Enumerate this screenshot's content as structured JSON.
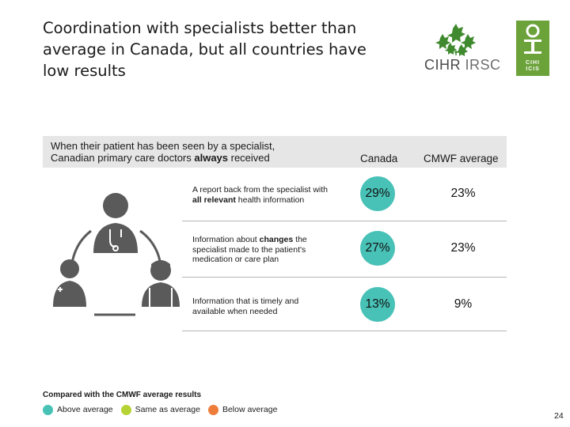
{
  "slide": {
    "title": "Coordination with specialists better than average in Canada, but all countries have low results",
    "page_number": "24"
  },
  "logos": {
    "cihr": {
      "name": "CIHR",
      "name_fr": "IRSC",
      "icon": "maple-leaf-cluster-icon"
    },
    "cihi": {
      "lines": [
        "CIHI",
        "ICIS"
      ],
      "icon": "cihi-i-logo-icon",
      "color": "#6ba23a"
    }
  },
  "table": {
    "intro_line1": "When their patient has been seen by a specialist,",
    "intro_line2_prefix": "Canadian primary care doctors ",
    "intro_line2_bold": "always",
    "intro_line2_suffix": " received",
    "columns": {
      "canada": "Canada",
      "cmwf": "CMWF average"
    },
    "rows": [
      {
        "label_prefix": "A report back from the specialist with ",
        "label_bold": "all relevant",
        "label_suffix": " health information",
        "canada": "29%",
        "cmwf": "23%",
        "canada_status": "above"
      },
      {
        "label_prefix": "Information about ",
        "label_bold": "changes",
        "label_suffix": " the specialist made to the patient's medication or care plan",
        "canada": "27%",
        "cmwf": "23%",
        "canada_status": "above"
      },
      {
        "label_prefix": "Information that is timely and available when needed",
        "label_bold": "",
        "label_suffix": "",
        "canada": "13%",
        "cmwf": "9%",
        "canada_status": "above"
      }
    ]
  },
  "legend": {
    "title": "Compared with the CMWF average results",
    "items": [
      {
        "label": "Above average",
        "color": "#48c1b6"
      },
      {
        "label": "Same as average",
        "color": "#b5d334"
      },
      {
        "label": "Below average",
        "color": "#ee7d3b"
      }
    ]
  },
  "colors": {
    "above": "#48c1b6",
    "icon_gray": "#5a5a5a",
    "band": "#e6e6e6"
  }
}
